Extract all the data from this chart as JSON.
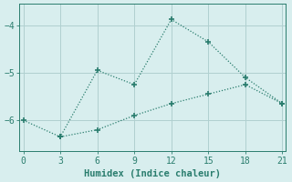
{
  "line1_x": [
    0,
    3,
    6,
    9,
    12,
    15,
    18,
    21
  ],
  "line1_y": [
    -6.0,
    -6.35,
    -4.95,
    -5.25,
    -3.88,
    -4.35,
    -5.1,
    -5.65
  ],
  "line2_x": [
    3,
    6,
    9,
    12,
    15,
    18,
    21
  ],
  "line2_y": [
    -6.35,
    -6.2,
    -5.9,
    -5.65,
    -5.45,
    -5.25,
    -5.65
  ],
  "color": "#2a7d6e",
  "bg_color": "#d8eeee",
  "grid_color": "#b0d0d0",
  "xlabel": "Humidex (Indice chaleur)",
  "xticks": [
    0,
    3,
    6,
    9,
    12,
    15,
    18,
    21
  ],
  "yticks": [
    -6,
    -5,
    -4
  ],
  "xlim": [
    -0.3,
    21.3
  ],
  "ylim": [
    -6.65,
    -3.55
  ],
  "marker": "+"
}
